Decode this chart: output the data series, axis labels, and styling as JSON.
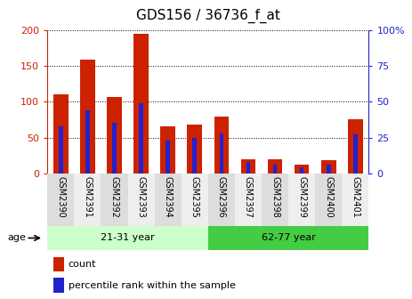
{
  "title": "GDS156 / 36736_f_at",
  "categories": [
    "GSM2390",
    "GSM2391",
    "GSM2392",
    "GSM2393",
    "GSM2394",
    "GSM2395",
    "GSM2396",
    "GSM2397",
    "GSM2398",
    "GSM2399",
    "GSM2400",
    "GSM2401"
  ],
  "red_values": [
    110,
    158,
    107,
    195,
    65,
    68,
    79,
    20,
    20,
    12,
    18,
    76
  ],
  "blue_values": [
    33,
    44,
    35,
    49,
    23,
    25,
    28,
    8,
    6,
    4,
    6,
    27
  ],
  "ylim_left": [
    0,
    200
  ],
  "ylim_right": [
    0,
    100
  ],
  "yticks_left": [
    0,
    50,
    100,
    150,
    200
  ],
  "yticks_right": [
    0,
    25,
    50,
    75,
    100
  ],
  "ytick_labels_right": [
    "0",
    "25",
    "50",
    "75",
    "100%"
  ],
  "red_color": "#cc2200",
  "blue_color": "#2222cc",
  "bar_width": 0.55,
  "groups": [
    {
      "label": "21-31 year",
      "start": 0,
      "end": 5,
      "color": "#ccffcc"
    },
    {
      "label": "62-77 year",
      "start": 6,
      "end": 11,
      "color": "#44cc44"
    }
  ],
  "legend_items": [
    {
      "label": "count",
      "color": "#cc2200"
    },
    {
      "label": "percentile rank within the sample",
      "color": "#2222cc"
    }
  ],
  "title_fontsize": 11,
  "axis_label_color_left": "#cc2200",
  "axis_label_color_right": "#2222cc",
  "grid_color": "black",
  "tick_label_fontsize": 7,
  "legend_fontsize": 8
}
